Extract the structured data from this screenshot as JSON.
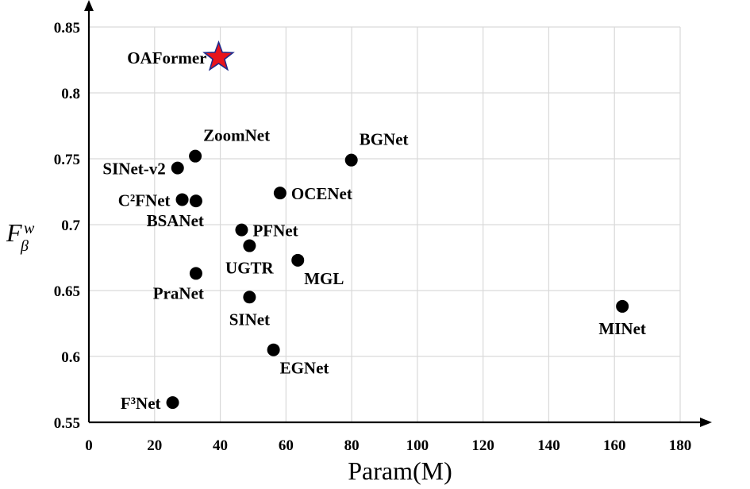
{
  "chart_data": {
    "type": "scatter",
    "xlabel": "Param(M)",
    "ylabel": "F",
    "ylabel_sup": "w",
    "ylabel_sub": "β",
    "xlim": [
      0,
      180
    ],
    "ylim": [
      0.55,
      0.85
    ],
    "xticks": [
      "0",
      "20",
      "40",
      "60",
      "80",
      "100",
      "120",
      "140",
      "160",
      "180"
    ],
    "yticks": [
      "0.55",
      "0.6",
      "0.65",
      "0.7",
      "0.75",
      "0.8",
      "0.85"
    ],
    "grid": true,
    "highlight_color": "#e8141c",
    "highlight_outline": "#1f2a8a",
    "point_color": "#000000",
    "points": [
      {
        "name": "OAFormer",
        "x": 39.5,
        "y": 0.827,
        "marker": "star",
        "label_pos": "left"
      },
      {
        "name": "ZoomNet",
        "x": 32.4,
        "y": 0.752,
        "label_pos": "above-right"
      },
      {
        "name": "SINet-v2",
        "x": 27.0,
        "y": 0.743,
        "label_pos": "left"
      },
      {
        "name": "BGNet",
        "x": 79.9,
        "y": 0.749,
        "label_pos": "above-right"
      },
      {
        "name": "C²FNet",
        "x": 28.4,
        "y": 0.719,
        "label_pos": "left"
      },
      {
        "name": "BSANet",
        "x": 32.6,
        "y": 0.718,
        "label_pos": "below-left"
      },
      {
        "name": "OCENet",
        "x": 58.2,
        "y": 0.724,
        "label_pos": "right"
      },
      {
        "name": "PFNet",
        "x": 46.5,
        "y": 0.696,
        "label_pos": "right"
      },
      {
        "name": "UGTR",
        "x": 48.9,
        "y": 0.684,
        "label_pos": "below"
      },
      {
        "name": "MGL",
        "x": 63.6,
        "y": 0.673,
        "label_pos": "below-right"
      },
      {
        "name": "PraNet",
        "x": 32.6,
        "y": 0.663,
        "label_pos": "below-left"
      },
      {
        "name": "SINet",
        "x": 48.9,
        "y": 0.645,
        "label_pos": "below"
      },
      {
        "name": "MINet",
        "x": 162.4,
        "y": 0.638,
        "label_pos": "below"
      },
      {
        "name": "EGNet",
        "x": 56.2,
        "y": 0.605,
        "label_pos": "below-right"
      },
      {
        "name": "F³Net",
        "x": 25.5,
        "y": 0.565,
        "label_pos": "left"
      }
    ]
  }
}
